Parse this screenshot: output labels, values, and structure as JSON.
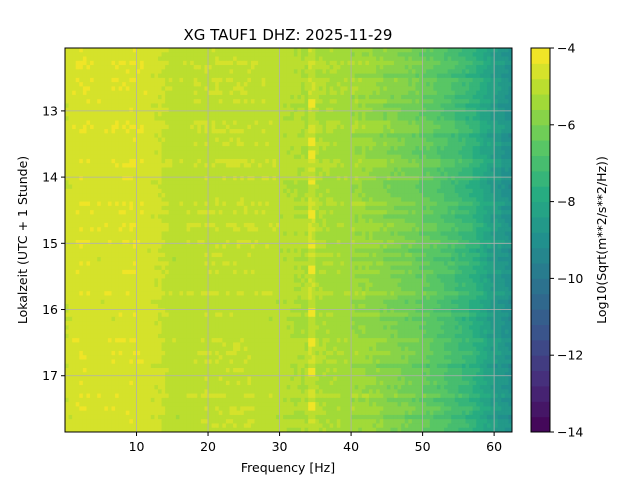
{
  "chart_data": {
    "type": "heatmap",
    "title": "XG TAUF1  DHZ: 2025-11-29",
    "xlabel": "Frequency [Hz]",
    "ylabel": "Lokalzeit (UTC + 1 Stunde)",
    "xlim": [
      0,
      62.5
    ],
    "ylim": [
      17.85,
      12.05
    ],
    "xticks": [
      10,
      20,
      30,
      40,
      50,
      60
    ],
    "yticks": [
      13,
      14,
      15,
      16,
      17
    ],
    "grid": true,
    "colorbar": {
      "label": "Log10(Sqrt(m**2/s**2/Hz))",
      "range": [
        -14,
        -4
      ],
      "ticks": [
        -14,
        -12,
        -10,
        -8,
        -6,
        -4
      ],
      "levels": 25,
      "colormap": "viridis"
    },
    "spectral_profile": {
      "frequency_hz": [
        0,
        2,
        5,
        10,
        13,
        15,
        20,
        25,
        30,
        33,
        35,
        38,
        40,
        43,
        45,
        48,
        50,
        52,
        55,
        57,
        58,
        60,
        62.5
      ],
      "log10_amplitude": [
        -4.7,
        -4.5,
        -4.6,
        -4.5,
        -4.7,
        -5.0,
        -4.9,
        -4.9,
        -5.0,
        -5.2,
        -5.2,
        -5.3,
        -5.4,
        -5.6,
        -5.8,
        -6.1,
        -6.3,
        -6.6,
        -7.1,
        -7.5,
        -7.8,
        -8.4,
        -9.0
      ]
    },
    "persistent_line_hz": 34.5,
    "line_burst_times": [
      12.9,
      13.45,
      13.62,
      13.68,
      14.08,
      14.55,
      15.05,
      15.4,
      16.05,
      16.5,
      16.95,
      17.45
    ]
  }
}
